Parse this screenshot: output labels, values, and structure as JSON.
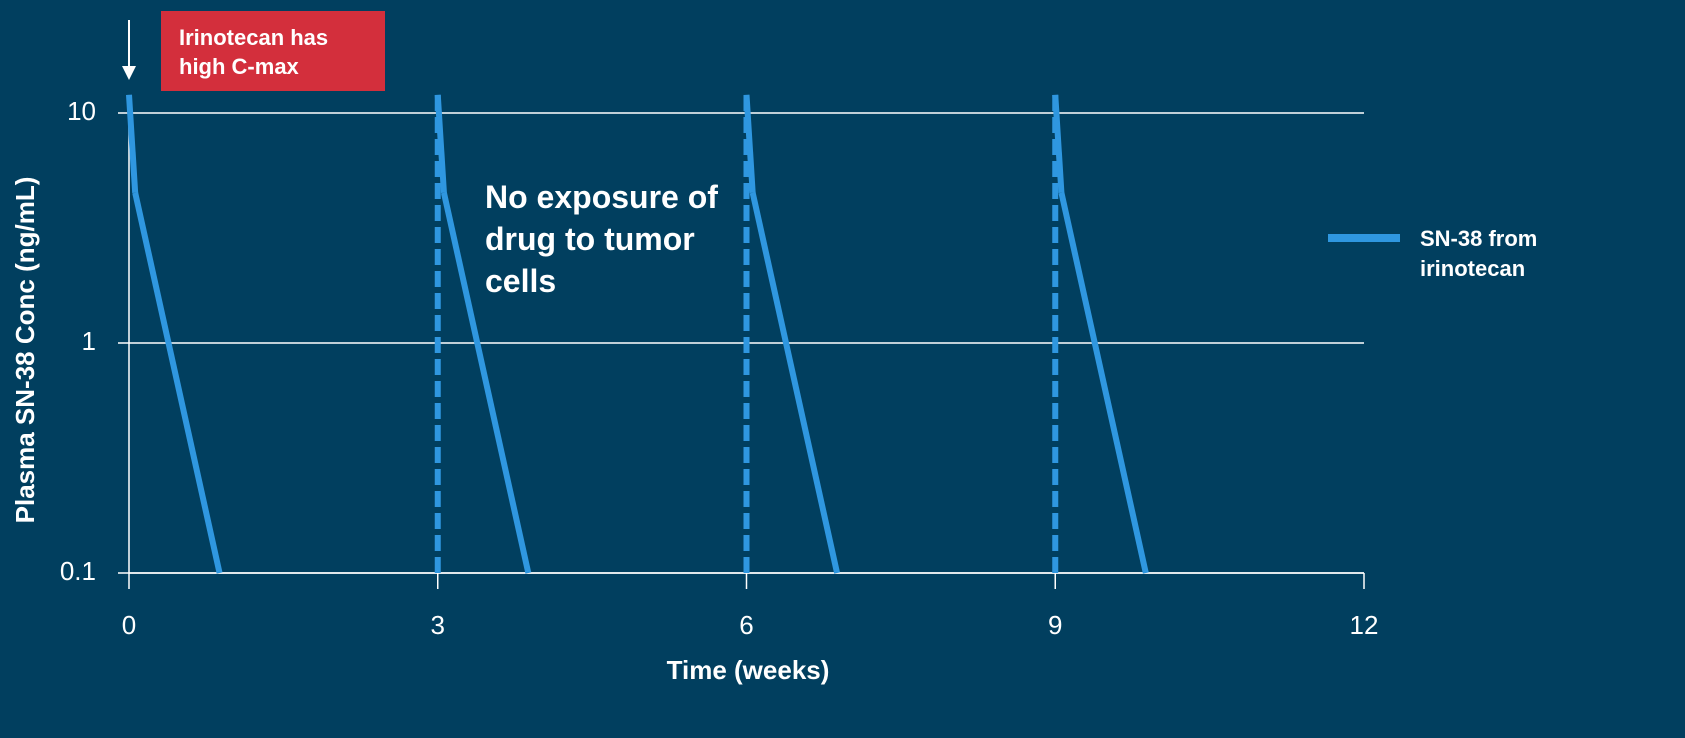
{
  "chart_data": {
    "type": "line",
    "x_label": "Time (weeks)",
    "y_label": "Plasma SN-38 Conc (ng/mL)",
    "log_scale_y": true,
    "grid": true,
    "legend_position": "right",
    "xlim": [
      0,
      12
    ],
    "xticks": [
      0,
      3,
      6,
      9,
      12
    ],
    "ylim": [
      0.1,
      10
    ],
    "yticks": [
      0.1,
      1,
      10
    ],
    "series": [
      {
        "name": "SN-38 from irinotecan",
        "color": "#2f97e0",
        "x": [
          0,
          0.06,
          0.88,
          null,
          3,
          3,
          3.06,
          3.88,
          null,
          6,
          6,
          6.06,
          6.88,
          null,
          9,
          9,
          9.06,
          9.88
        ],
        "values": [
          12,
          4.5,
          0.1,
          null,
          0.1,
          12,
          4.5,
          0.1,
          null,
          0.1,
          12,
          4.5,
          0.1,
          null,
          0.1,
          12,
          4.5,
          0.1
        ]
      }
    ],
    "annotations": [
      {
        "text": "Irinotecan has high C-max",
        "color": "#d32f3c"
      },
      {
        "text": "No exposure of drug to tumor cells"
      }
    ]
  }
}
